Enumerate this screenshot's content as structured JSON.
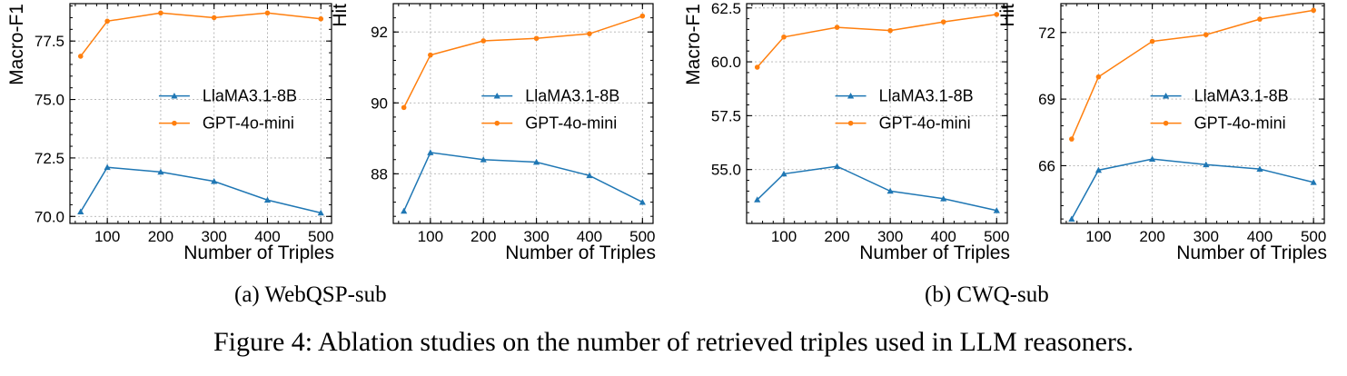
{
  "colors": {
    "llama": "#1f77b4",
    "gpt": "#ff7f0e",
    "grid": "#b0b0b0",
    "axis": "#000000"
  },
  "captions": {
    "sub_a": "(a) WebQSP-sub",
    "sub_b": "(b) CWQ-sub",
    "figure": "Figure 4: Ablation studies on the number of retrieved triples used in LLM reasoners."
  },
  "chart_data": [
    {
      "type": "line",
      "group": "(a) WebQSP-sub",
      "xlabel": "Number of Triples",
      "ylabel": "Macro-F1",
      "x": [
        50,
        100,
        200,
        300,
        400,
        500
      ],
      "xticks": [
        100,
        200,
        300,
        400,
        500
      ],
      "xlim": [
        30,
        520
      ],
      "yticks": [
        70.0,
        72.5,
        75.0,
        77.5
      ],
      "yticklabels": [
        "70.0",
        "72.5",
        "75.0",
        "77.5"
      ],
      "ylim": [
        69.7,
        79.1
      ],
      "grid": true,
      "legend": "center-right",
      "series": [
        {
          "name": "LlaMA3.1-8B",
          "marker": "triangle",
          "values": [
            70.2,
            72.1,
            71.9,
            71.5,
            70.7,
            70.15
          ]
        },
        {
          "name": "GPT-4o-mini",
          "marker": "circle",
          "values": [
            76.85,
            78.35,
            78.7,
            78.5,
            78.7,
            78.45
          ]
        }
      ]
    },
    {
      "type": "line",
      "group": "(a) WebQSP-sub",
      "xlabel": "Number of Triples",
      "ylabel": "Hit",
      "x": [
        50,
        100,
        200,
        300,
        400,
        500
      ],
      "xticks": [
        100,
        200,
        300,
        400,
        500
      ],
      "xlim": [
        30,
        520
      ],
      "yticks": [
        88,
        90,
        92
      ],
      "yticklabels": [
        "88",
        "90",
        "92"
      ],
      "ylim": [
        86.6,
        92.8
      ],
      "grid": true,
      "legend": "center-right",
      "series": [
        {
          "name": "LlaMA3.1-8B",
          "marker": "triangle",
          "values": [
            86.95,
            88.6,
            88.4,
            88.33,
            87.95,
            87.2
          ]
        },
        {
          "name": "GPT-4o-mini",
          "marker": "circle",
          "values": [
            89.87,
            91.35,
            91.75,
            91.82,
            91.95,
            92.45
          ]
        }
      ]
    },
    {
      "type": "line",
      "group": "(b) CWQ-sub",
      "xlabel": "Number of Triples",
      "ylabel": "Macro-F1",
      "x": [
        50,
        100,
        200,
        300,
        400,
        500
      ],
      "xticks": [
        100,
        200,
        300,
        400,
        500
      ],
      "xlim": [
        30,
        520
      ],
      "yticks": [
        55.0,
        57.5,
        60.0,
        62.5
      ],
      "yticklabels": [
        "55.0",
        "57.5",
        "60.0",
        "62.5"
      ],
      "ylim": [
        52.5,
        62.7
      ],
      "grid": true,
      "legend": "center-right",
      "series": [
        {
          "name": "LlaMA3.1-8B",
          "marker": "triangle",
          "values": [
            53.6,
            54.8,
            55.15,
            54.0,
            53.65,
            53.1
          ]
        },
        {
          "name": "GPT-4o-mini",
          "marker": "circle",
          "values": [
            59.75,
            61.15,
            61.6,
            61.45,
            61.85,
            62.2
          ]
        }
      ]
    },
    {
      "type": "line",
      "group": "(b) CWQ-sub",
      "xlabel": "Number of Triples",
      "ylabel": "Hit",
      "x": [
        50,
        100,
        200,
        300,
        400,
        500
      ],
      "xticks": [
        100,
        200,
        300,
        400,
        500
      ],
      "xlim": [
        30,
        520
      ],
      "yticks": [
        66,
        69,
        72
      ],
      "yticklabels": [
        "66",
        "69",
        "72"
      ],
      "ylim": [
        63.4,
        73.3
      ],
      "grid": true,
      "legend": "center-right",
      "series": [
        {
          "name": "LlaMA3.1-8B",
          "marker": "triangle",
          "values": [
            63.6,
            65.8,
            66.3,
            66.05,
            65.85,
            65.25
          ]
        },
        {
          "name": "GPT-4o-mini",
          "marker": "circle",
          "values": [
            67.2,
            70.0,
            71.6,
            71.9,
            72.6,
            73.0
          ]
        }
      ]
    }
  ]
}
